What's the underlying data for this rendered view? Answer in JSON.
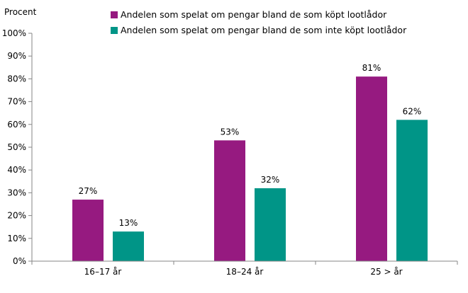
{
  "chart_data": {
    "type": "bar",
    "title": "",
    "xlabel": "",
    "ylabel": "Procent",
    "ylim": [
      0,
      100
    ],
    "yticks": [
      "0%",
      "10%",
      "20%",
      "30%",
      "40%",
      "50%",
      "60%",
      "70%",
      "80%",
      "90%",
      "100%"
    ],
    "grid": false,
    "legend_position": "top",
    "categories": [
      "16–17 år",
      "18–24 år",
      "25 > år"
    ],
    "series": [
      {
        "name": "Andelen som spelat om pengar bland de som köpt lootlådor",
        "color": "#961A80",
        "values": [
          27,
          53,
          81
        ],
        "labels": [
          "27%",
          "53%",
          "81%"
        ]
      },
      {
        "name": "Andelen som spelat om pengar bland de som inte köpt lootlådor",
        "color": "#009587",
        "values": [
          13,
          32,
          62
        ],
        "labels": [
          "13%",
          "32%",
          "62%"
        ]
      }
    ]
  }
}
